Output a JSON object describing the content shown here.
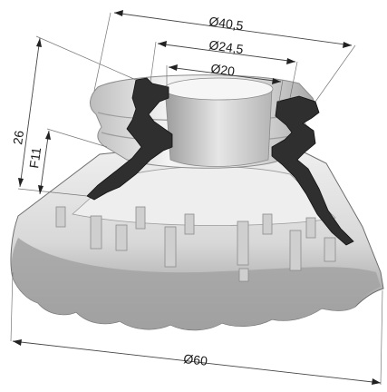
{
  "dimensions": {
    "d_outer_top": "Ø40,5",
    "d_mid_top": "Ø24,5",
    "d_inner_top": "Ø20",
    "height_total": "26",
    "height_fitting": "F11",
    "d_base": "Ø60"
  },
  "colors": {
    "cup_body": "#e9e9e9",
    "cup_shadow": "#9a9a9a",
    "section_cut": "#2f2f2f",
    "dimension_line": "#444444"
  }
}
